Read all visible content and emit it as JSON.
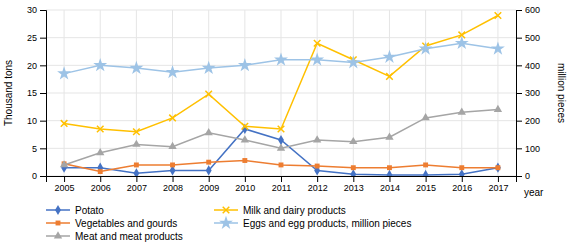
{
  "chart_data": {
    "type": "line",
    "x": [
      2005,
      2006,
      2007,
      2008,
      2009,
      2010,
      2011,
      2012,
      2013,
      2014,
      2015,
      2016,
      2017
    ],
    "xlim": [
      2004.5,
      2017.5
    ],
    "xticks": [
      2005,
      2006,
      2007,
      2008,
      2009,
      2010,
      2011,
      2012,
      2013,
      2014,
      2015,
      2016,
      2017
    ],
    "xlabel": "year",
    "ylim": [
      0,
      30
    ],
    "yticks": [
      0,
      5,
      10,
      15,
      20,
      25,
      30
    ],
    "ylabel": "Thousand tons",
    "y2lim": [
      0,
      600
    ],
    "y2ticks": [
      0,
      100,
      200,
      300,
      400,
      500,
      600
    ],
    "y2label": "million pieces",
    "grid": true,
    "legend": "bottom",
    "series": [
      {
        "name": "Potato",
        "color": "#4472C4",
        "marker": "diamond",
        "values": [
          1.5,
          1.5,
          0.5,
          1.0,
          1.0,
          8.5,
          6.5,
          1.0,
          0.3,
          0.2,
          0.2,
          0.3,
          1.5
        ]
      },
      {
        "name": "Vegetables and gourds",
        "color": "#ED7D31",
        "marker": "square",
        "values": [
          2.2,
          0.8,
          2.0,
          2.0,
          2.5,
          2.8,
          2.0,
          1.8,
          1.5,
          1.5,
          2.0,
          1.5,
          1.5
        ]
      },
      {
        "name": "Meat and meat products",
        "color": "#A5A5A5",
        "marker": "triangle",
        "values": [
          2.0,
          4.2,
          5.7,
          5.3,
          7.8,
          6.5,
          5.0,
          6.5,
          6.2,
          7.0,
          10.5,
          11.5,
          12.0
        ]
      },
      {
        "name": "Milk and dairy products",
        "color": "#FFC000",
        "marker": "x",
        "values": [
          9.5,
          8.5,
          8.0,
          10.5,
          14.8,
          9.0,
          8.5,
          24.0,
          21.0,
          18.0,
          23.5,
          25.5,
          29.0
        ]
      },
      {
        "name": "Eggs and egg products, million pieces",
        "color": "#9DC3E6",
        "marker": "star",
        "axis": "y2",
        "values": [
          370,
          400,
          390,
          375,
          390,
          400,
          420,
          420,
          410,
          430,
          460,
          480,
          460
        ]
      }
    ]
  }
}
